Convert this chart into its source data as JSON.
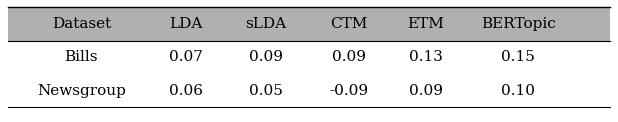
{
  "col_labels": [
    "Dataset",
    "LDA",
    "sLDA",
    "CTM",
    "ETM",
    "BERTopic"
  ],
  "rows": [
    [
      "Bills",
      "0.07",
      "0.09",
      "0.09",
      "0.13",
      "0.15"
    ],
    [
      "Newsgroup",
      "0.06",
      "0.05",
      "-0.09",
      "0.09",
      "0.10"
    ]
  ],
  "header_bg_color": "#b0b0b0",
  "header_text_color": "#000000",
  "row_bg_color": "#ffffff",
  "row_text_color": "#000000",
  "font_size": 11,
  "header_font_size": 11,
  "figsize": [
    6.18,
    1.22
  ],
  "dpi": 100
}
